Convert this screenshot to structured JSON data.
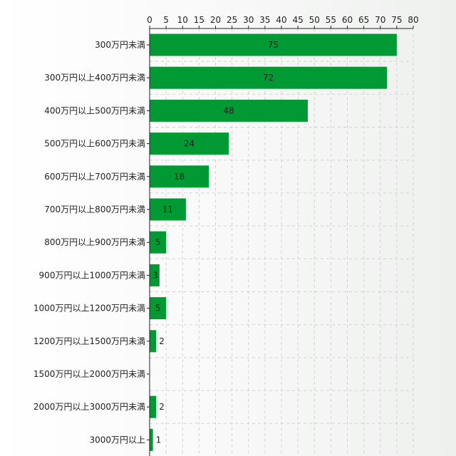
{
  "chart_data": {
    "type": "bar",
    "orientation": "horizontal",
    "categories": [
      "300万円未満",
      "300万円以上400万円未満",
      "400万円以上500万円未満",
      "500万円以上600万円未満",
      "600万円以上700万円未満",
      "700万円以上800万円未満",
      "800万円以上900万円未満",
      "900万円以上1000万円未満",
      "1000万円以上1200万円未満",
      "1200万円以上1500万円未満",
      "1500万円以上2000万円未満",
      "2000万円以上3000万円未満",
      "3000万円以上"
    ],
    "values": [
      75,
      72,
      48,
      24,
      18,
      11,
      5,
      3,
      5,
      2,
      0,
      2,
      1
    ],
    "data_labels": [
      "75",
      "72",
      "48",
      "24",
      "18",
      "11",
      "5",
      "3",
      "5",
      "2",
      "",
      "2",
      "1"
    ],
    "x_ticks": [
      0,
      5,
      10,
      15,
      20,
      25,
      30,
      35,
      40,
      45,
      50,
      55,
      60,
      65,
      70,
      75,
      80
    ],
    "xlim": [
      0,
      80
    ],
    "x_axis_position": "top",
    "grid": true,
    "legend": "none",
    "title": "",
    "xlabel": "",
    "ylabel": "",
    "bar_color": "#009933"
  }
}
